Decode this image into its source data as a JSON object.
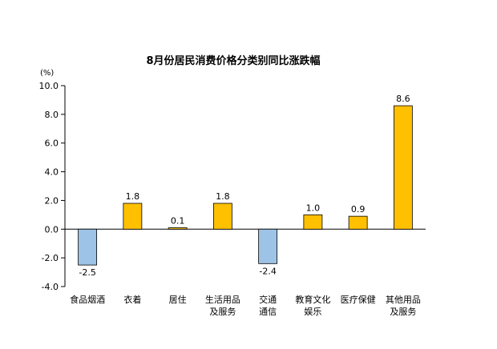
{
  "chart_data": {
    "type": "bar",
    "title": "8月份居民消费价格分类别同比涨跌幅",
    "unit_label": "(%)",
    "categories": [
      [
        "食品烟酒"
      ],
      [
        "衣着"
      ],
      [
        "居住"
      ],
      [
        "生活用品",
        "及服务"
      ],
      [
        "交通",
        "通信"
      ],
      [
        "教育文化",
        "娱乐"
      ],
      [
        "医疗保健"
      ],
      [
        "其他用品",
        "及服务"
      ]
    ],
    "values": [
      -2.5,
      1.8,
      0.1,
      1.8,
      -2.4,
      1.0,
      0.9,
      8.6
    ],
    "value_labels": [
      "-2.5",
      "1.8",
      "0.1",
      "1.8",
      "-2.4",
      "1.0",
      "0.9",
      "8.6"
    ],
    "ylim": [
      -4.0,
      10.0
    ],
    "yticks": [
      -4.0,
      -2.0,
      0.0,
      2.0,
      4.0,
      6.0,
      8.0,
      10.0
    ],
    "ytick_labels": [
      "-4.0",
      "-2.0",
      "0.0",
      "2.0",
      "4.0",
      "6.0",
      "8.0",
      "10.0"
    ],
    "grid": false,
    "legend": "none",
    "colors": {
      "positive_fill": "#FFC000",
      "positive_stroke": "#000000",
      "negative_fill": "#9DC3E6",
      "negative_stroke": "#000000"
    }
  }
}
